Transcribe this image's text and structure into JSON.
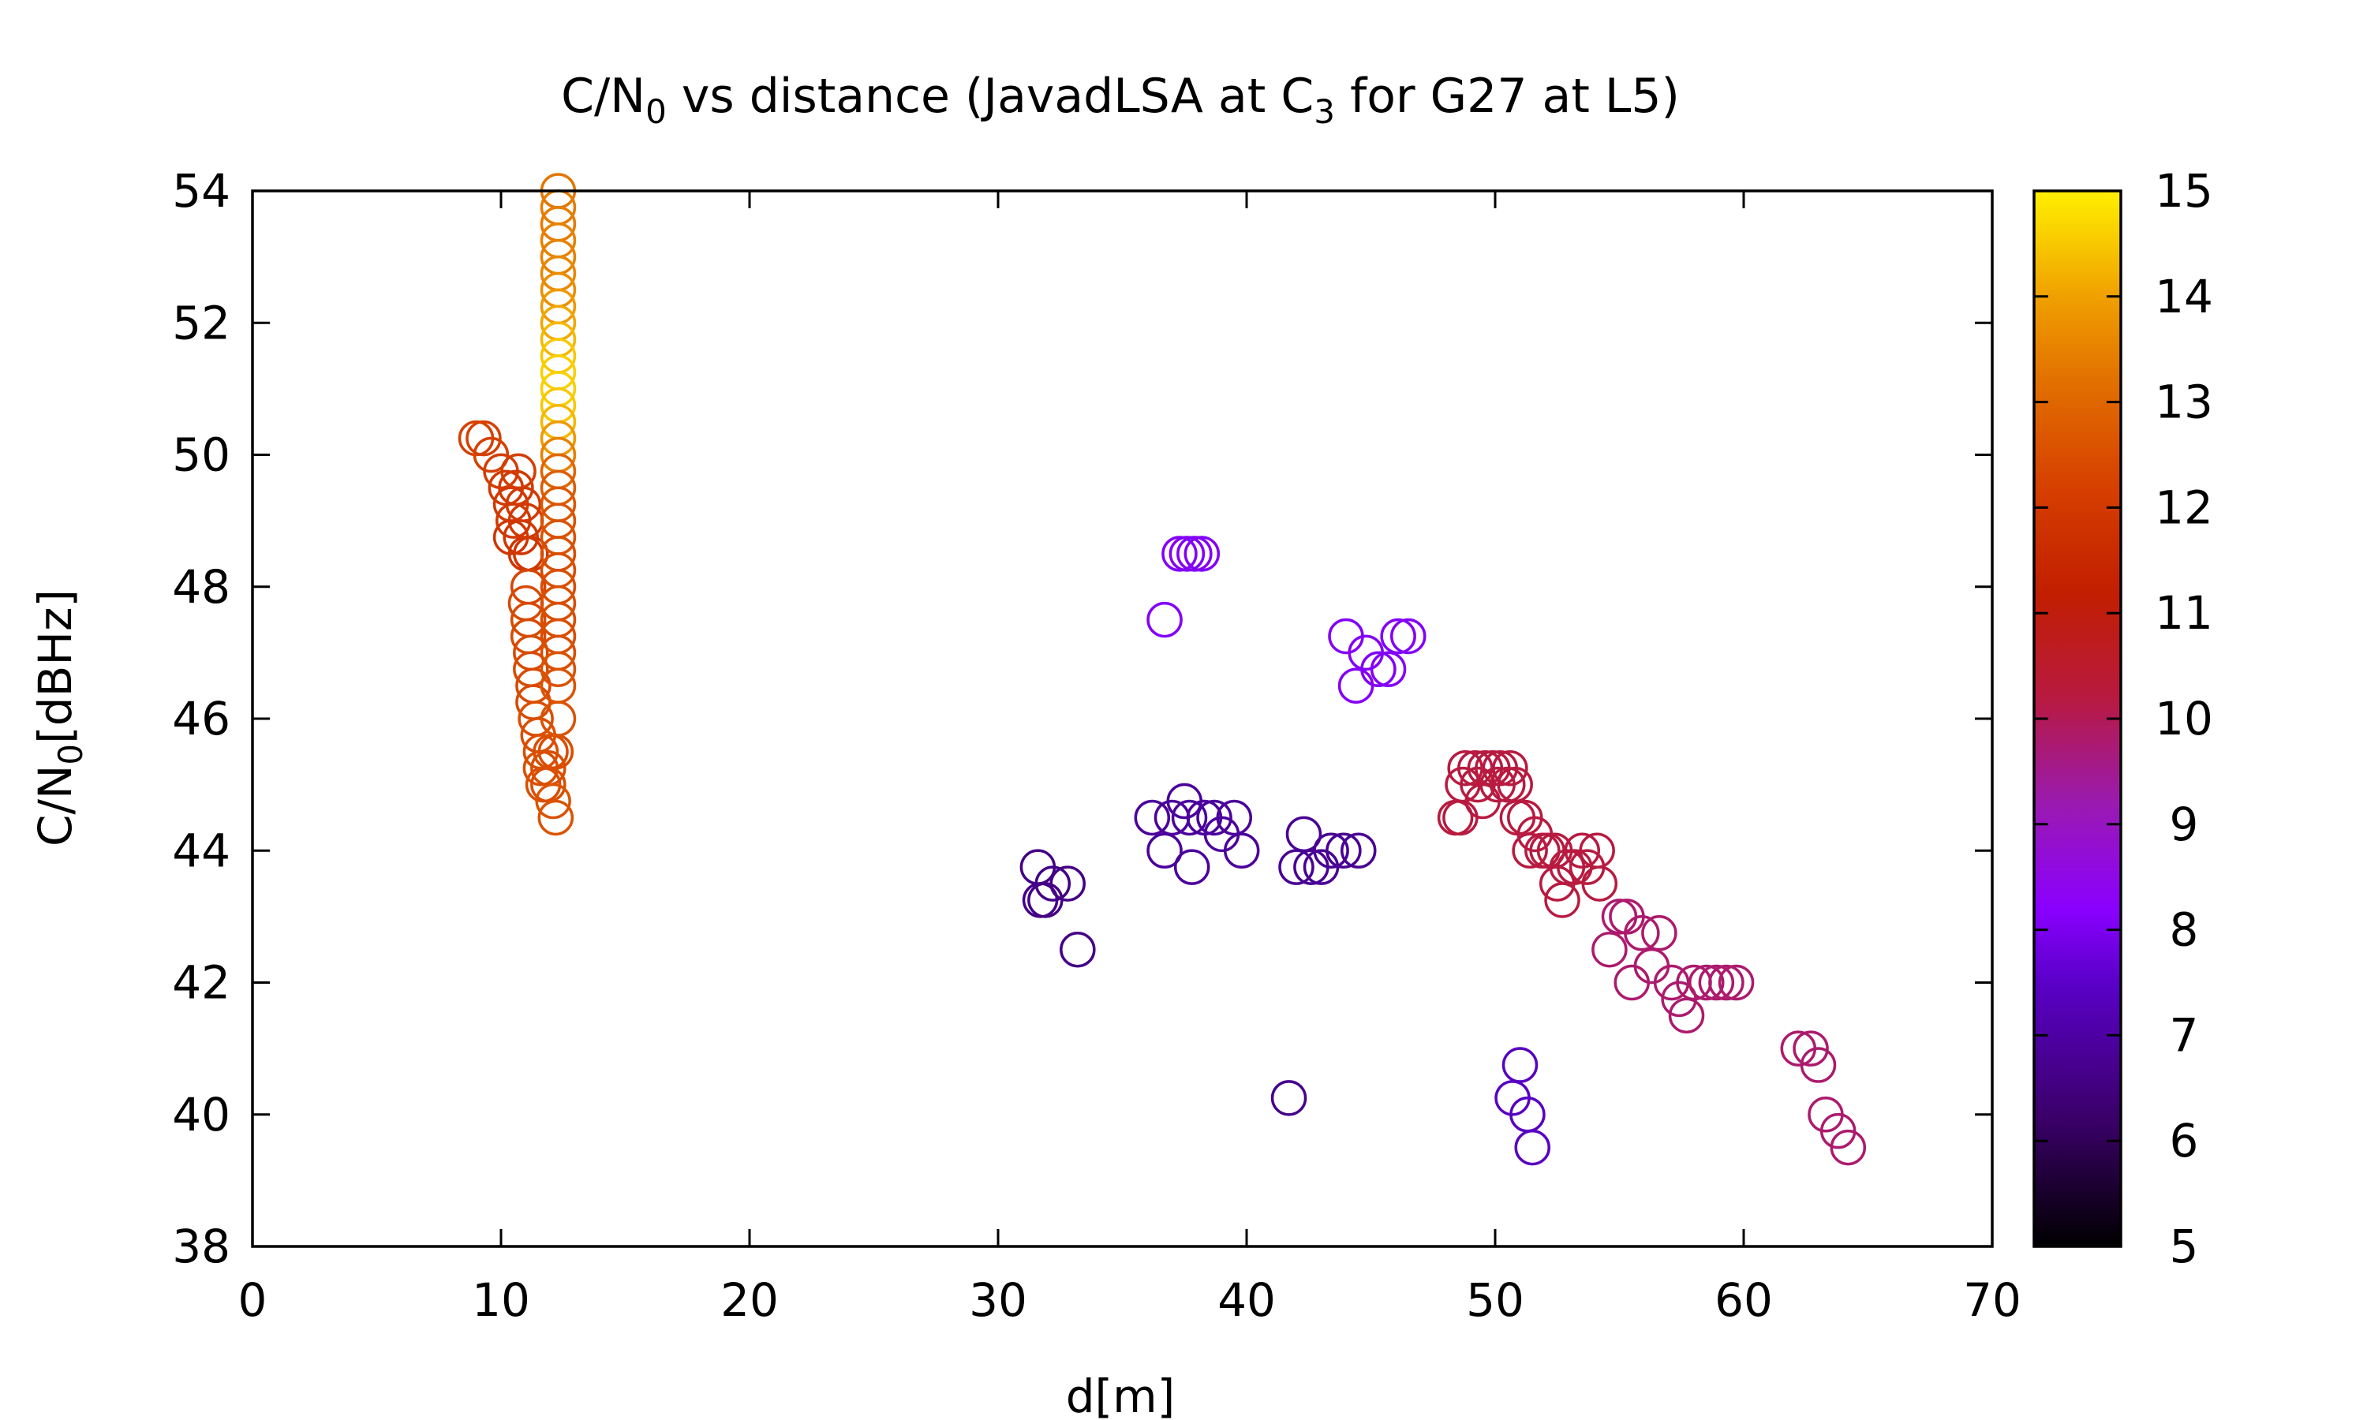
{
  "chart_data": {
    "type": "scatter",
    "title": {
      "main": "C/N",
      "sub0": "0",
      "mid": " vs distance (JavadLSA at C",
      "sub3": "3",
      "end": " for G27 at L5)"
    },
    "xlabel": "d[m]",
    "ylabel": {
      "main": "C/N",
      "sub": "0",
      "end": "[dBHz]"
    },
    "xlim": [
      0,
      70
    ],
    "ylim": [
      38,
      54
    ],
    "xticks": [
      0,
      10,
      20,
      30,
      40,
      50,
      60,
      70
    ],
    "yticks": [
      38,
      40,
      42,
      44,
      46,
      48,
      50,
      52,
      54
    ],
    "colorbar": {
      "min": 5,
      "max": 15,
      "ticks": [
        5,
        6,
        7,
        8,
        9,
        10,
        11,
        12,
        13,
        14,
        15
      ],
      "palette": "black-purple-red-orange-yellow"
    },
    "marker": "open-circle",
    "grid": false,
    "legend": "none",
    "points": [
      [
        9.0,
        50.25,
        12.2
      ],
      [
        9.3,
        50.25,
        12.2
      ],
      [
        9.6,
        50.0,
        12.2
      ],
      [
        10.0,
        49.75,
        12.1
      ],
      [
        10.2,
        49.5,
        12.0
      ],
      [
        10.4,
        49.25,
        12.0
      ],
      [
        10.5,
        49.0,
        12.0
      ],
      [
        10.6,
        49.5,
        12.0
      ],
      [
        10.7,
        49.75,
        12.1
      ],
      [
        10.4,
        48.75,
        11.9
      ],
      [
        10.8,
        48.75,
        11.9
      ],
      [
        11.0,
        48.5,
        11.9
      ],
      [
        10.9,
        49.25,
        12.0
      ],
      [
        11.2,
        48.5,
        11.9
      ],
      [
        11.0,
        49.0,
        12.0
      ],
      [
        11.1,
        48.0,
        12.3
      ],
      [
        11.0,
        47.75,
        12.4
      ],
      [
        11.1,
        47.5,
        12.4
      ],
      [
        11.1,
        47.25,
        12.4
      ],
      [
        11.2,
        47.0,
        12.4
      ],
      [
        11.2,
        46.75,
        12.4
      ],
      [
        11.3,
        46.5,
        12.4
      ],
      [
        11.3,
        46.25,
        12.4
      ],
      [
        11.4,
        46.0,
        12.5
      ],
      [
        11.5,
        45.75,
        12.5
      ],
      [
        11.6,
        45.5,
        12.5
      ],
      [
        11.6,
        45.25,
        12.5
      ],
      [
        11.7,
        45.0,
        12.5
      ],
      [
        11.9,
        45.0,
        12.5
      ],
      [
        11.9,
        45.25,
        12.5
      ],
      [
        12.0,
        45.5,
        12.5
      ],
      [
        12.1,
        44.75,
        12.6
      ],
      [
        12.2,
        44.5,
        12.6
      ],
      [
        12.2,
        45.5,
        12.5
      ],
      [
        12.3,
        54.0,
        13.3
      ],
      [
        12.3,
        53.75,
        13.4
      ],
      [
        12.3,
        53.5,
        13.4
      ],
      [
        12.3,
        53.25,
        13.5
      ],
      [
        12.3,
        53.0,
        13.5
      ],
      [
        12.3,
        52.75,
        13.6
      ],
      [
        12.3,
        52.5,
        13.7
      ],
      [
        12.3,
        52.25,
        13.9
      ],
      [
        12.3,
        52.0,
        14.1
      ],
      [
        12.3,
        51.75,
        14.3
      ],
      [
        12.3,
        51.5,
        14.5
      ],
      [
        12.3,
        51.25,
        14.6
      ],
      [
        12.3,
        51.0,
        14.6
      ],
      [
        12.3,
        50.75,
        14.5
      ],
      [
        12.3,
        50.5,
        14.3
      ],
      [
        12.3,
        50.25,
        13.9
      ],
      [
        12.3,
        50.0,
        13.5
      ],
      [
        12.3,
        49.75,
        13.0
      ],
      [
        12.3,
        49.5,
        12.8
      ],
      [
        12.3,
        49.25,
        12.7
      ],
      [
        12.3,
        49.0,
        12.6
      ],
      [
        12.3,
        48.75,
        12.6
      ],
      [
        12.3,
        48.5,
        12.5
      ],
      [
        12.3,
        48.25,
        12.5
      ],
      [
        12.3,
        48.0,
        12.5
      ],
      [
        12.3,
        47.75,
        12.5
      ],
      [
        12.3,
        47.5,
        12.5
      ],
      [
        12.3,
        47.25,
        12.5
      ],
      [
        12.3,
        47.0,
        12.5
      ],
      [
        12.3,
        46.75,
        12.6
      ],
      [
        12.3,
        46.5,
        12.6
      ],
      [
        12.3,
        46.0,
        12.6
      ],
      [
        31.6,
        43.75,
        6.6
      ],
      [
        31.7,
        43.25,
        6.6
      ],
      [
        31.9,
        43.25,
        6.6
      ],
      [
        32.2,
        43.5,
        6.6
      ],
      [
        32.8,
        43.5,
        6.6
      ],
      [
        33.2,
        42.5,
        6.6
      ],
      [
        36.2,
        44.5,
        6.9
      ],
      [
        36.7,
        44.0,
        6.9
      ],
      [
        37.0,
        44.5,
        6.9
      ],
      [
        37.5,
        44.75,
        6.9
      ],
      [
        37.7,
        44.5,
        6.9
      ],
      [
        37.8,
        43.75,
        6.9
      ],
      [
        38.3,
        44.5,
        6.9
      ],
      [
        38.7,
        44.5,
        6.9
      ],
      [
        39.0,
        44.25,
        6.9
      ],
      [
        39.5,
        44.5,
        6.9
      ],
      [
        39.8,
        44.0,
        6.9
      ],
      [
        36.7,
        47.5,
        8.1
      ],
      [
        37.3,
        48.5,
        8.1
      ],
      [
        37.6,
        48.5,
        8.1
      ],
      [
        37.9,
        48.5,
        8.1
      ],
      [
        38.2,
        48.5,
        8.1
      ],
      [
        41.7,
        40.25,
        6.7
      ],
      [
        42.0,
        43.75,
        6.8
      ],
      [
        42.3,
        44.25,
        6.8
      ],
      [
        42.6,
        43.75,
        6.8
      ],
      [
        43.0,
        43.75,
        6.8
      ],
      [
        43.4,
        44.0,
        6.8
      ],
      [
        43.9,
        44.0,
        6.8
      ],
      [
        44.5,
        44.0,
        6.8
      ],
      [
        44.0,
        47.25,
        8.1
      ],
      [
        44.4,
        46.5,
        8.1
      ],
      [
        44.8,
        47.0,
        8.1
      ],
      [
        45.3,
        46.75,
        8.1
      ],
      [
        45.7,
        46.75,
        8.1
      ],
      [
        46.1,
        47.25,
        8.1
      ],
      [
        46.5,
        47.25,
        8.1
      ],
      [
        48.4,
        44.5,
        10.2
      ],
      [
        48.6,
        44.5,
        10.2
      ],
      [
        48.7,
        45.0,
        10.2
      ],
      [
        48.8,
        45.25,
        10.2
      ],
      [
        49.2,
        45.25,
        10.2
      ],
      [
        49.3,
        45.0,
        10.2
      ],
      [
        49.5,
        44.75,
        10.2
      ],
      [
        49.6,
        45.25,
        10.2
      ],
      [
        49.9,
        45.25,
        10.2
      ],
      [
        50.1,
        45.0,
        10.2
      ],
      [
        50.2,
        45.25,
        10.2
      ],
      [
        50.5,
        45.0,
        10.2
      ],
      [
        50.6,
        45.25,
        10.2
      ],
      [
        50.8,
        45.0,
        10.2
      ],
      [
        50.9,
        44.5,
        10.2
      ],
      [
        51.2,
        44.5,
        10.2
      ],
      [
        51.4,
        44.0,
        10.2
      ],
      [
        51.6,
        44.25,
        10.2
      ],
      [
        51.9,
        44.0,
        10.2
      ],
      [
        52.1,
        44.0,
        10.2
      ],
      [
        52.4,
        44.0,
        10.2
      ],
      [
        52.5,
        43.5,
        10.2
      ],
      [
        52.7,
        43.25,
        10.2
      ],
      [
        52.9,
        43.75,
        10.2
      ],
      [
        53.2,
        43.75,
        10.2
      ],
      [
        53.5,
        44.0,
        10.2
      ],
      [
        53.7,
        43.75,
        10.2
      ],
      [
        54.1,
        44.0,
        10.2
      ],
      [
        54.2,
        43.5,
        10.2
      ],
      [
        51.0,
        40.75,
        7.4
      ],
      [
        50.7,
        40.25,
        7.4
      ],
      [
        51.3,
        40.0,
        7.4
      ],
      [
        51.5,
        39.5,
        7.4
      ],
      [
        54.6,
        42.5,
        9.8
      ],
      [
        55.0,
        43.0,
        9.8
      ],
      [
        55.3,
        43.0,
        9.8
      ],
      [
        55.5,
        42.0,
        9.8
      ],
      [
        55.9,
        42.75,
        9.8
      ],
      [
        56.3,
        42.25,
        9.8
      ],
      [
        56.6,
        42.75,
        9.8
      ],
      [
        57.1,
        42.0,
        9.8
      ],
      [
        57.4,
        41.75,
        9.8
      ],
      [
        57.7,
        41.5,
        9.8
      ],
      [
        58.0,
        42.0,
        9.8
      ],
      [
        58.5,
        42.0,
        9.8
      ],
      [
        58.9,
        42.0,
        9.8
      ],
      [
        59.3,
        42.0,
        9.8
      ],
      [
        59.7,
        42.0,
        9.8
      ],
      [
        62.2,
        41.0,
        9.8
      ],
      [
        62.7,
        41.0,
        9.8
      ],
      [
        63.0,
        40.75,
        9.8
      ],
      [
        63.3,
        40.0,
        9.8
      ],
      [
        63.8,
        39.75,
        9.8
      ],
      [
        64.2,
        39.5,
        9.8
      ]
    ]
  }
}
